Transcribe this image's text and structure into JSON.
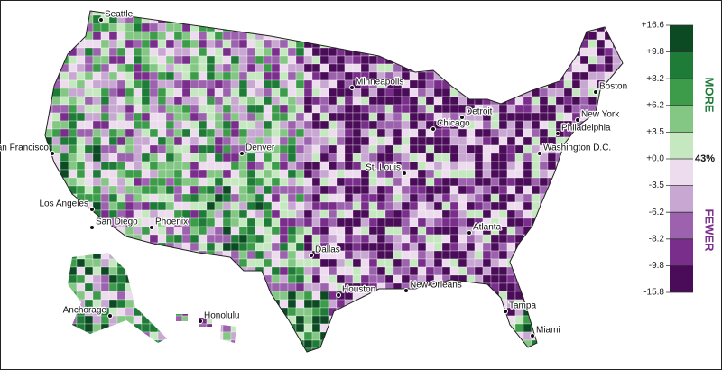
{
  "map": {
    "cities": [
      "Seattle",
      "San Francisco",
      "Los Angeles",
      "San Diego",
      "Phoenix",
      "Denver",
      "Minneapolis",
      "Chicago",
      "Detroit",
      "St. Louis",
      "Dallas",
      "Houston",
      "New Orleans",
      "Atlanta",
      "Tampa",
      "Miami",
      "Washington D.C.",
      "Philadelphia",
      "New York",
      "Boston",
      "Anchorage",
      "Honolulu"
    ],
    "legend": {
      "ticks": [
        {
          "value": 16.6,
          "label": "+16.6"
        },
        {
          "value": 9.8,
          "label": "+9.8"
        },
        {
          "value": 8.2,
          "label": "+8.2"
        },
        {
          "value": 6.2,
          "label": "+6.2"
        },
        {
          "value": 3.5,
          "label": "+3.5"
        },
        {
          "value": 0,
          "label": "+0.0"
        },
        -3.5,
        -6.2,
        -8.2,
        -9.8,
        -15.8
      ],
      "colors": [
        "#0b4a22",
        "#1f7c38",
        "#3c9c4a",
        "#84c784",
        "#c6e8c0",
        "#ecdcee",
        "#c8a7d2",
        "#9c62ad",
        "#7a2e8c",
        "#4a0c58"
      ],
      "more_label": "MORE",
      "fewer_label": "FEWER",
      "national": {
        "value": 43,
        "label": "43%"
      }
    }
  }
}
